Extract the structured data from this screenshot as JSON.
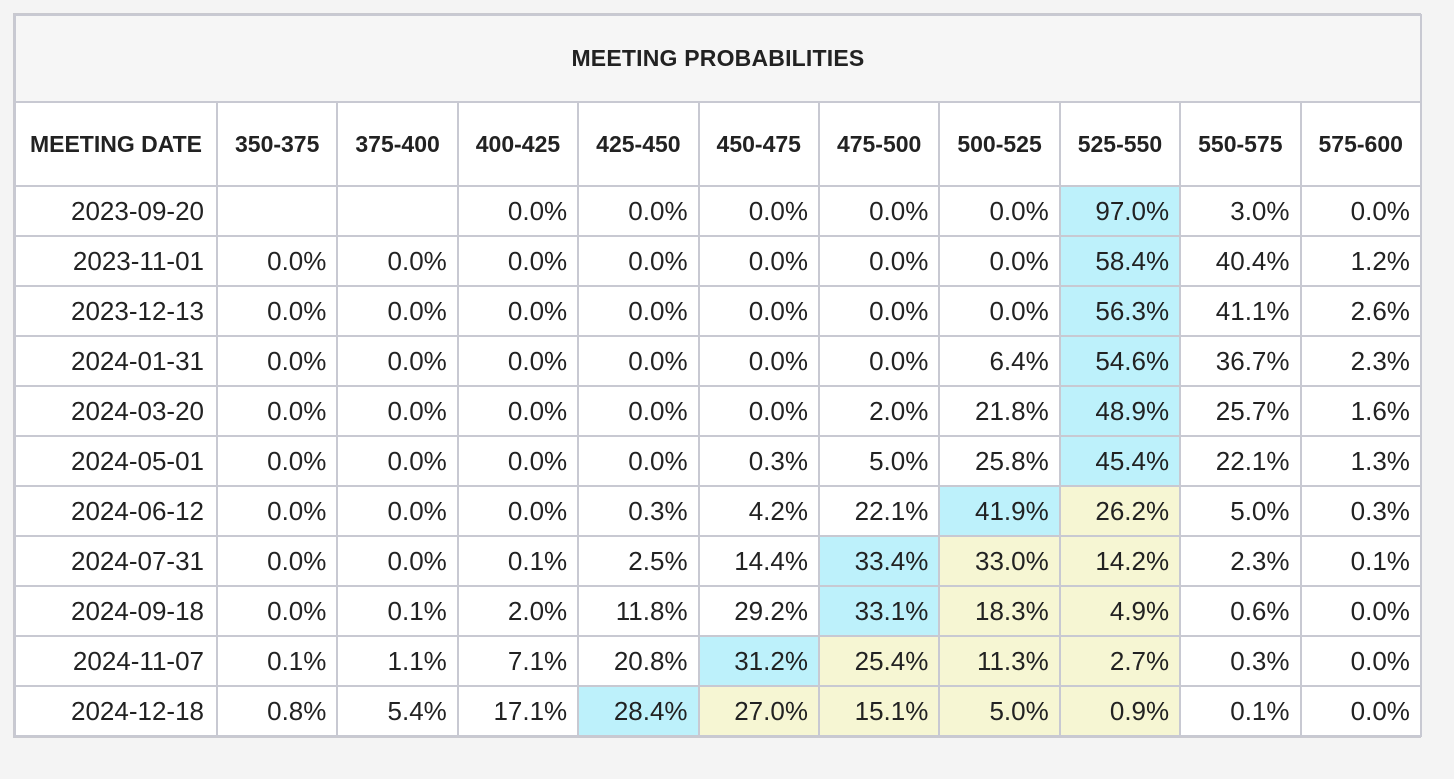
{
  "title": "MEETING PROBABILITIES",
  "colors": {
    "highest": "#bdf1fb",
    "secondary": "#f6f6d3",
    "border": "#c8c9d2"
  },
  "columns": [
    "MEETING DATE",
    "350-375",
    "375-400",
    "400-425",
    "425-450",
    "450-475",
    "475-500",
    "500-525",
    "525-550",
    "550-575",
    "575-600"
  ],
  "rows": [
    {
      "date": "2023-09-20",
      "values": [
        "",
        "",
        "0.0%",
        "0.0%",
        "0.0%",
        "0.0%",
        "0.0%",
        "97.0%",
        "3.0%",
        "0.0%"
      ],
      "highlight": [
        null,
        null,
        null,
        null,
        null,
        null,
        null,
        "max",
        null,
        null
      ]
    },
    {
      "date": "2023-11-01",
      "values": [
        "0.0%",
        "0.0%",
        "0.0%",
        "0.0%",
        "0.0%",
        "0.0%",
        "0.0%",
        "58.4%",
        "40.4%",
        "1.2%"
      ],
      "highlight": [
        null,
        null,
        null,
        null,
        null,
        null,
        null,
        "max",
        null,
        null
      ]
    },
    {
      "date": "2023-12-13",
      "values": [
        "0.0%",
        "0.0%",
        "0.0%",
        "0.0%",
        "0.0%",
        "0.0%",
        "0.0%",
        "56.3%",
        "41.1%",
        "2.6%"
      ],
      "highlight": [
        null,
        null,
        null,
        null,
        null,
        null,
        null,
        "max",
        null,
        null
      ]
    },
    {
      "date": "2024-01-31",
      "values": [
        "0.0%",
        "0.0%",
        "0.0%",
        "0.0%",
        "0.0%",
        "0.0%",
        "6.4%",
        "54.6%",
        "36.7%",
        "2.3%"
      ],
      "highlight": [
        null,
        null,
        null,
        null,
        null,
        null,
        null,
        "max",
        null,
        null
      ]
    },
    {
      "date": "2024-03-20",
      "values": [
        "0.0%",
        "0.0%",
        "0.0%",
        "0.0%",
        "0.0%",
        "2.0%",
        "21.8%",
        "48.9%",
        "25.7%",
        "1.6%"
      ],
      "highlight": [
        null,
        null,
        null,
        null,
        null,
        null,
        null,
        "max",
        null,
        null
      ]
    },
    {
      "date": "2024-05-01",
      "values": [
        "0.0%",
        "0.0%",
        "0.0%",
        "0.0%",
        "0.3%",
        "5.0%",
        "25.8%",
        "45.4%",
        "22.1%",
        "1.3%"
      ],
      "highlight": [
        null,
        null,
        null,
        null,
        null,
        null,
        null,
        "max",
        null,
        null
      ]
    },
    {
      "date": "2024-06-12",
      "values": [
        "0.0%",
        "0.0%",
        "0.0%",
        "0.3%",
        "4.2%",
        "22.1%",
        "41.9%",
        "26.2%",
        "5.0%",
        "0.3%"
      ],
      "highlight": [
        null,
        null,
        null,
        null,
        null,
        null,
        "max",
        "alt",
        null,
        null
      ]
    },
    {
      "date": "2024-07-31",
      "values": [
        "0.0%",
        "0.0%",
        "0.1%",
        "2.5%",
        "14.4%",
        "33.4%",
        "33.0%",
        "14.2%",
        "2.3%",
        "0.1%"
      ],
      "highlight": [
        null,
        null,
        null,
        null,
        null,
        "max",
        "alt",
        "alt",
        null,
        null
      ]
    },
    {
      "date": "2024-09-18",
      "values": [
        "0.0%",
        "0.1%",
        "2.0%",
        "11.8%",
        "29.2%",
        "33.1%",
        "18.3%",
        "4.9%",
        "0.6%",
        "0.0%"
      ],
      "highlight": [
        null,
        null,
        null,
        null,
        null,
        "max",
        "alt",
        "alt",
        null,
        null
      ]
    },
    {
      "date": "2024-11-07",
      "values": [
        "0.1%",
        "1.1%",
        "7.1%",
        "20.8%",
        "31.2%",
        "25.4%",
        "11.3%",
        "2.7%",
        "0.3%",
        "0.0%"
      ],
      "highlight": [
        null,
        null,
        null,
        null,
        "max",
        "alt",
        "alt",
        "alt",
        null,
        null
      ]
    },
    {
      "date": "2024-12-18",
      "values": [
        "0.8%",
        "5.4%",
        "17.1%",
        "28.4%",
        "27.0%",
        "15.1%",
        "5.0%",
        "0.9%",
        "0.1%",
        "0.0%"
      ],
      "highlight": [
        null,
        null,
        null,
        "max",
        "alt",
        "alt",
        "alt",
        "alt",
        null,
        null
      ]
    }
  ]
}
